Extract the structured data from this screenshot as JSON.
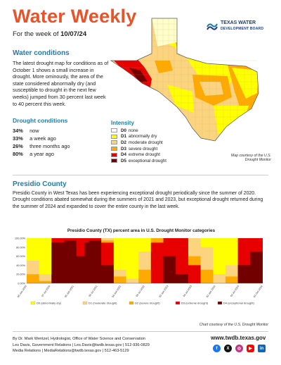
{
  "header": {
    "title": "Water Weekly",
    "week_prefix": "For the week of ",
    "week_date": "10/07/24",
    "logo_line1": "TEXAS WATER",
    "logo_line2": "DEVELOPMENT BOARD"
  },
  "conditions": {
    "heading": "Water conditions",
    "text": "The latest drought map for conditions as of October 1 shows a small increase in drought. More ominously, the area of the state considered abnormally dry (and susceptible to drought in the next few weeks) jumped from 30 percent last week to 40 percent this week."
  },
  "drought": {
    "heading": "Drought conditions",
    "stats": [
      {
        "value": "34%",
        "label": "now"
      },
      {
        "value": "33%",
        "label": "a week ago"
      },
      {
        "value": "26%",
        "label": "three months ago"
      },
      {
        "value": "80%",
        "label": "a year ago"
      }
    ]
  },
  "legend": {
    "title": "Intensity",
    "items": [
      {
        "code": "D0",
        "label": "none",
        "color": "#ffffff"
      },
      {
        "code": "D1",
        "label": "abnormally dry",
        "color": "#ffff00"
      },
      {
        "code": "D2",
        "label": "moderate drought",
        "color": "#fcd37f"
      },
      {
        "code": "D3",
        "label": "severe drought",
        "color": "#ffaa00"
      },
      {
        "code": "D4",
        "label": "extreme drought",
        "color": "#e60000"
      },
      {
        "code": "D5",
        "label": "exceptional drought",
        "color": "#730000"
      }
    ]
  },
  "map_credit": "Map courtesy of the U.S. Drought Monitor",
  "presidio": {
    "heading": "Presidio County",
    "text": "Presidio County in West Texas has been experiencing exceptional drought periodically since the summer of 2020. Drought conditions abated somewhat during the summers of 2021 and 2023, but exceptional drought returned during the summer of 2024 and expanded to cover the entire county in the last week."
  },
  "chart_data": {
    "type": "area",
    "title": "Presidio County (TX) percent area in U.S. Drought Monitor categories",
    "yticks": [
      "100.00%",
      "80.00%",
      "60.00%",
      "40.00%",
      "20.00%",
      "0.00%"
    ],
    "ylim": [
      0,
      100
    ],
    "x_labels": [
      "06-Jan-2020",
      "07-Jul-2020",
      "05-Jan-2021",
      "06-Jul-2021",
      "04-Jan-2022",
      "05-Jul-2022",
      "03-Jan-2023",
      "04-Jul-2023",
      "02-Jan-2024",
      "02-Jul-2024",
      "01-Oct-2024"
    ],
    "x": [
      0,
      3,
      6,
      9,
      12,
      14,
      15,
      18,
      21,
      24,
      27,
      30,
      33,
      36,
      39,
      42,
      45,
      48,
      51,
      54,
      57
    ],
    "series": [
      {
        "name": "D0 (abnormally dry)",
        "color": "#ffff00",
        "values": [
          100,
          100,
          100,
          100,
          100,
          100,
          100,
          100,
          100,
          100,
          100,
          100,
          100,
          100,
          100,
          100,
          100,
          100,
          100,
          100,
          100
        ]
      },
      {
        "name": "D1 (moderate drought)",
        "color": "#fcd37f",
        "values": [
          50,
          20,
          100,
          100,
          100,
          100,
          100,
          100,
          30,
          10,
          70,
          100,
          100,
          100,
          100,
          80,
          20,
          40,
          100,
          100,
          100
        ]
      },
      {
        "name": "D2 (severe drought)",
        "color": "#ffaa00",
        "values": [
          20,
          5,
          100,
          100,
          100,
          100,
          100,
          95,
          15,
          0,
          30,
          100,
          100,
          100,
          60,
          30,
          0,
          15,
          100,
          100,
          100
        ]
      },
      {
        "name": "D3 (extreme drought)",
        "color": "#e60000",
        "values": [
          0,
          0,
          100,
          100,
          100,
          100,
          100,
          90,
          0,
          0,
          0,
          90,
          100,
          100,
          40,
          0,
          0,
          0,
          100,
          100,
          100
        ]
      },
      {
        "name": "D4 (exceptional drought)",
        "color": "#730000",
        "values": [
          0,
          0,
          90,
          95,
          60,
          90,
          95,
          40,
          0,
          0,
          0,
          0,
          60,
          20,
          0,
          0,
          0,
          0,
          40,
          70,
          100
        ]
      }
    ]
  },
  "chart_credit": "Chart courtesy of the U.S. Drought Monitor",
  "footer": {
    "line1": "By Dr. Mark Wentzel, Hydrologist, Office of Water Science and Conservation",
    "line2": "Les Davis, Government Relations | Les.Davis@twdb.texas.gov | 512-936-0829",
    "line3": "Media Relations | MediaRelations@twdb.texas.gov | 512-463-5129",
    "url": "www.twdb.texas.gov",
    "social": [
      {
        "icon": "facebook-icon",
        "glyph": "f",
        "color": "#1877f2"
      },
      {
        "icon": "x-icon",
        "glyph": "X",
        "color": "#111111"
      },
      {
        "icon": "instagram-icon",
        "glyph": "◎",
        "color": "#c13584"
      },
      {
        "icon": "youtube-icon",
        "glyph": "▶",
        "color": "#ff0000"
      },
      {
        "icon": "linkedin-icon",
        "glyph": "in",
        "color": "#0a66c2"
      }
    ]
  }
}
